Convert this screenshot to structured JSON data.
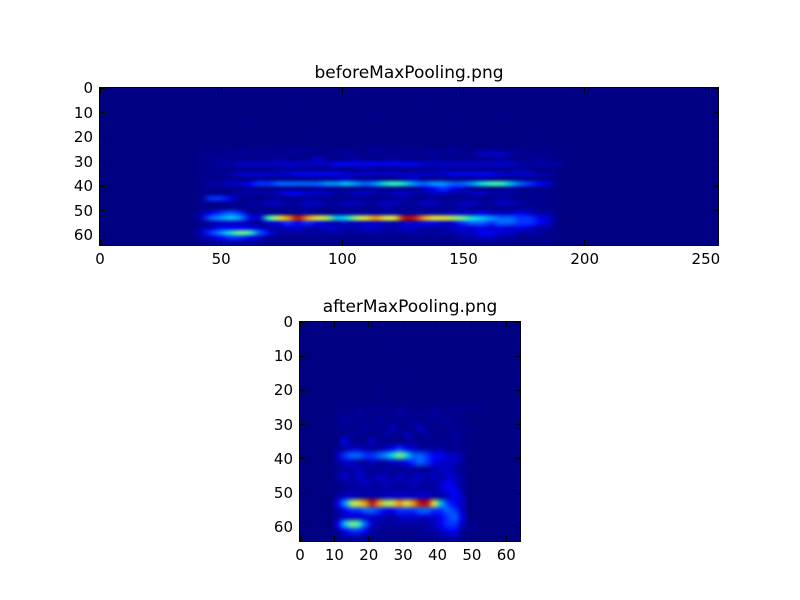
{
  "figure": {
    "background": "#ffffff",
    "axes_edge_color": "#000000",
    "tick_color": "#000000"
  },
  "palette_jet": [
    "#000082",
    "#00008e",
    "#0000a3",
    "#0000c8",
    "#0004f0",
    "#0032ff",
    "#0064ff",
    "#0096ff",
    "#00c8f0",
    "#14e8d2",
    "#3cffb4",
    "#78ff82",
    "#b4ff50",
    "#f0f028",
    "#ffa000",
    "#c81400"
  ],
  "chart_data": [
    {
      "type": "heatmap",
      "title": "beforeMaxPooling.png",
      "xlabel": "",
      "ylabel": "",
      "colormap": "jet",
      "legend": "none",
      "grid_lines": "off",
      "x_range": [
        0,
        255
      ],
      "y_range": [
        0,
        64
      ],
      "y_direction": "down",
      "x_ticks": [
        "0",
        "50",
        "100",
        "150",
        "200",
        "250"
      ],
      "x_tick_values": [
        0,
        50,
        100,
        150,
        200,
        250
      ],
      "y_ticks": [
        "0",
        "10",
        "20",
        "30",
        "40",
        "50",
        "60"
      ],
      "y_tick_values": [
        0,
        10,
        20,
        30,
        40,
        50,
        60
      ],
      "grid": {
        "cols": 64,
        "rows": 32,
        "encoding": "hex-intensity-0-f",
        "rows_data": [
          "0000000000000000000000000000000000000000000000000000000000000000",
          "0000000000000000000000000000000000000000000000000000000000000000",
          "0000000000000000000000000000000000000000000000000000000000000000",
          "0000000000000000000010000000000001000000000000000000000000000000",
          "0000000000000000000000000000000000000000000000000000000000000000",
          "0000000000000000000000000000100000000000010000000000000000000000",
          "0000000000000000000000000000000000000000000000000000000000000000",
          "0000000000000001000000000000000000000100000000000000000000000000",
          "0000000000000000000000000000000000000000000000000000000000000000",
          "0000000000000000000000100000000000000000000010000000000000000000",
          "0000000000000000000000000000000000000000000000000000000000000000",
          "0000000000000000001000000000001000000000100000000000000000000000",
          "0000000000111111111121111111211111112111111111100000000000000000",
          "0000000000111121111111111211111111211113332111110000000000000000",
          "0000000000112111112111311121112111111111121112110000000000000000",
          "0000000000112233333333334444444443333333333222220000000000000000",
          "0000000000111111111211111112111111121111111211100000000000000000",
          "0000000000111233333344444333333333334444433332200000000000000000",
          "0000000000111111211111112311111231111112111111100000000000000000",
          "000000000012233455666667787679a976776679aa865430000000000000000",
          "0000000000111112111111211111211113454311112111100000000000000000",
          "0000000000111122223443332233223322332233222111100000000000000000",
          "0000000000155411111112111111111211111111121111100000000000000000",
          "0000000000111112233223322332233223322332233211100000000000000000",
          "0000000000111211111112111111121111111211111121100000000000000000",
          "0000000000245652211112112222222222223334333432200000000000000000",
          "00000000003678743adefedc89cdeddffeddcb9876655430000000000000000",
          "0000000000123332134545432333332334433566566554300000000000000000",
          "0000000000234444322332233223322332223334343432200000000000000000",
          "00000000003579ba642222222222222222222334433222100000000000000000",
          "0000000000234554311111111111111111111223322111100000000000000000",
          "0000000000112222111111111111111111111111111111100000000000000000"
        ]
      }
    },
    {
      "type": "heatmap",
      "title": "afterMaxPooling.png",
      "xlabel": "",
      "ylabel": "",
      "colormap": "jet",
      "legend": "none",
      "grid_lines": "off",
      "x_range": [
        0,
        64
      ],
      "y_range": [
        0,
        64
      ],
      "y_direction": "down",
      "x_ticks": [
        "0",
        "10",
        "20",
        "30",
        "40",
        "50",
        "60"
      ],
      "x_tick_values": [
        0,
        10,
        20,
        30,
        40,
        50,
        60
      ],
      "y_ticks": [
        "0",
        "10",
        "20",
        "30",
        "40",
        "50",
        "60"
      ],
      "y_tick_values": [
        0,
        10,
        20,
        30,
        40,
        50,
        60
      ],
      "grid": {
        "cols": 32,
        "rows": 32,
        "encoding": "hex-intensity-0-f",
        "rows_data": [
          "00000000000000000000000000000000",
          "00000000000000000000000000000000",
          "00000000000000000000000000000000",
          "00000000000001000000000000000000",
          "00000000000000000000000000000000",
          "00000000000000000000000000000000",
          "00000000000000000000000000000000",
          "00000000000000000000000000000000",
          "00000000000000001000000000000000",
          "00000000000000000000000000000000",
          "00000000000100000000000000000000",
          "00000000000000000000000000000000",
          "00000111111111111111111111100000",
          "00000111211111211112111100000000",
          "00000121111211112111121100000000",
          "00000111121113111311111110000000",
          "00000112111121131121112100000000",
          "00000141113111112111111100000000",
          "00000123322234543222211100000000",
          "00000356655679b96654433200000000",
          "00000233223223345654333200000000",
          "00000122321121122122332100000000",
          "00000232322322322323233200000000",
          "00000122232232223222343200000000",
          "00000112222222222222344200000000",
          "00000233222233333332234300000000",
          "0000047cdefecdedeffd854300000000",
          "00000245566544555665565300000000",
          "00000233333322333333456400000000",
          "0000048ba63222222223455311000000",
          "00000245542111111122344211000000",
          "00000122211111111111222100000000"
        ]
      }
    }
  ]
}
